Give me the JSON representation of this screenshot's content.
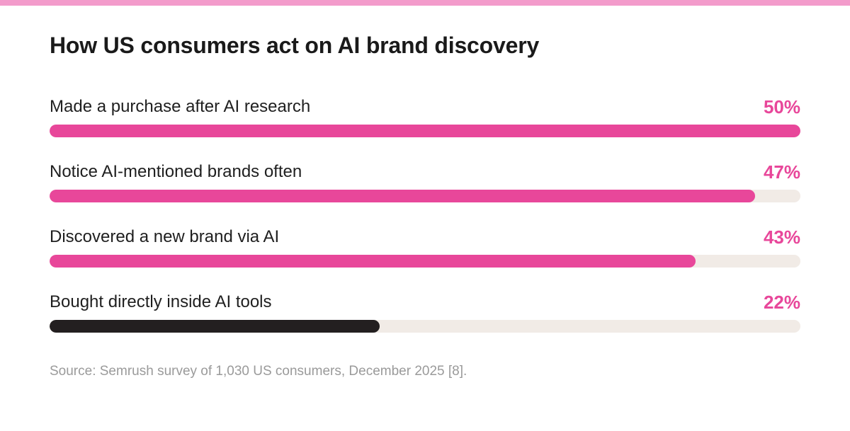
{
  "colors": {
    "accent": "#e8479a",
    "stripe": "#f39bcb",
    "track": "#f1ebe6",
    "dark_bar": "#231f20"
  },
  "chart_data": {
    "type": "bar",
    "orientation": "horizontal",
    "title": "How US consumers act on AI brand discovery",
    "categories": [
      "Made a purchase after AI research",
      "Notice AI-mentioned brands often",
      "Discovered a new brand via AI",
      "Bought directly inside AI tools"
    ],
    "values": [
      50,
      47,
      43,
      22
    ],
    "value_labels": [
      "50%",
      "47%",
      "43%",
      "22%"
    ],
    "bar_colors": [
      "#e8479a",
      "#e8479a",
      "#e8479a",
      "#231f20"
    ],
    "xlim": [
      0,
      50
    ],
    "grid": false,
    "legend": "none"
  },
  "source": "Source: Semrush survey of 1,030 US consumers, December 2025 [8]."
}
